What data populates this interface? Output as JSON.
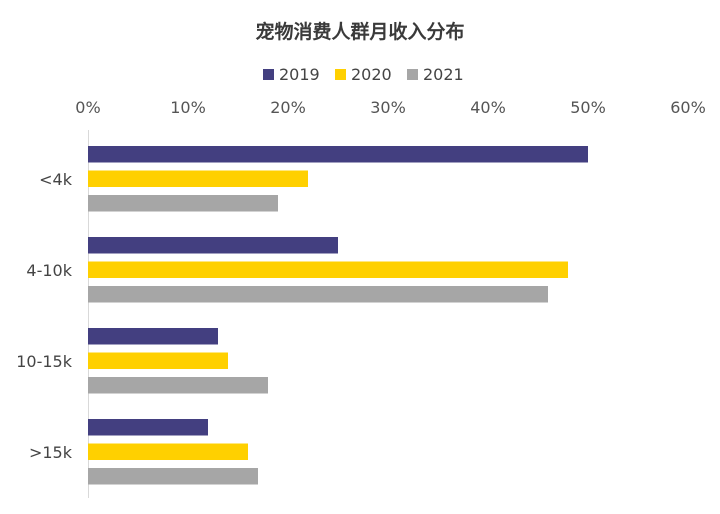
{
  "chart_data": {
    "type": "bar",
    "orientation": "horizontal",
    "title": "宠物消费人群月收入分布",
    "categories": [
      "<4k",
      "4-10k",
      "10-15k",
      ">15k"
    ],
    "series": [
      {
        "name": "2019",
        "color": "#433f80",
        "values": [
          50,
          25,
          13,
          12
        ]
      },
      {
        "name": "2020",
        "color": "#ffd000",
        "values": [
          22,
          48,
          14,
          16
        ]
      },
      {
        "name": "2021",
        "color": "#a6a6a6",
        "values": [
          19,
          46,
          18,
          17
        ]
      }
    ],
    "xlim": [
      0,
      60
    ],
    "x_ticks": [
      "0%",
      "10%",
      "20%",
      "30%",
      "40%",
      "50%",
      "60%"
    ],
    "x_axis_position": "top",
    "legend_position": "top",
    "grid": false
  }
}
